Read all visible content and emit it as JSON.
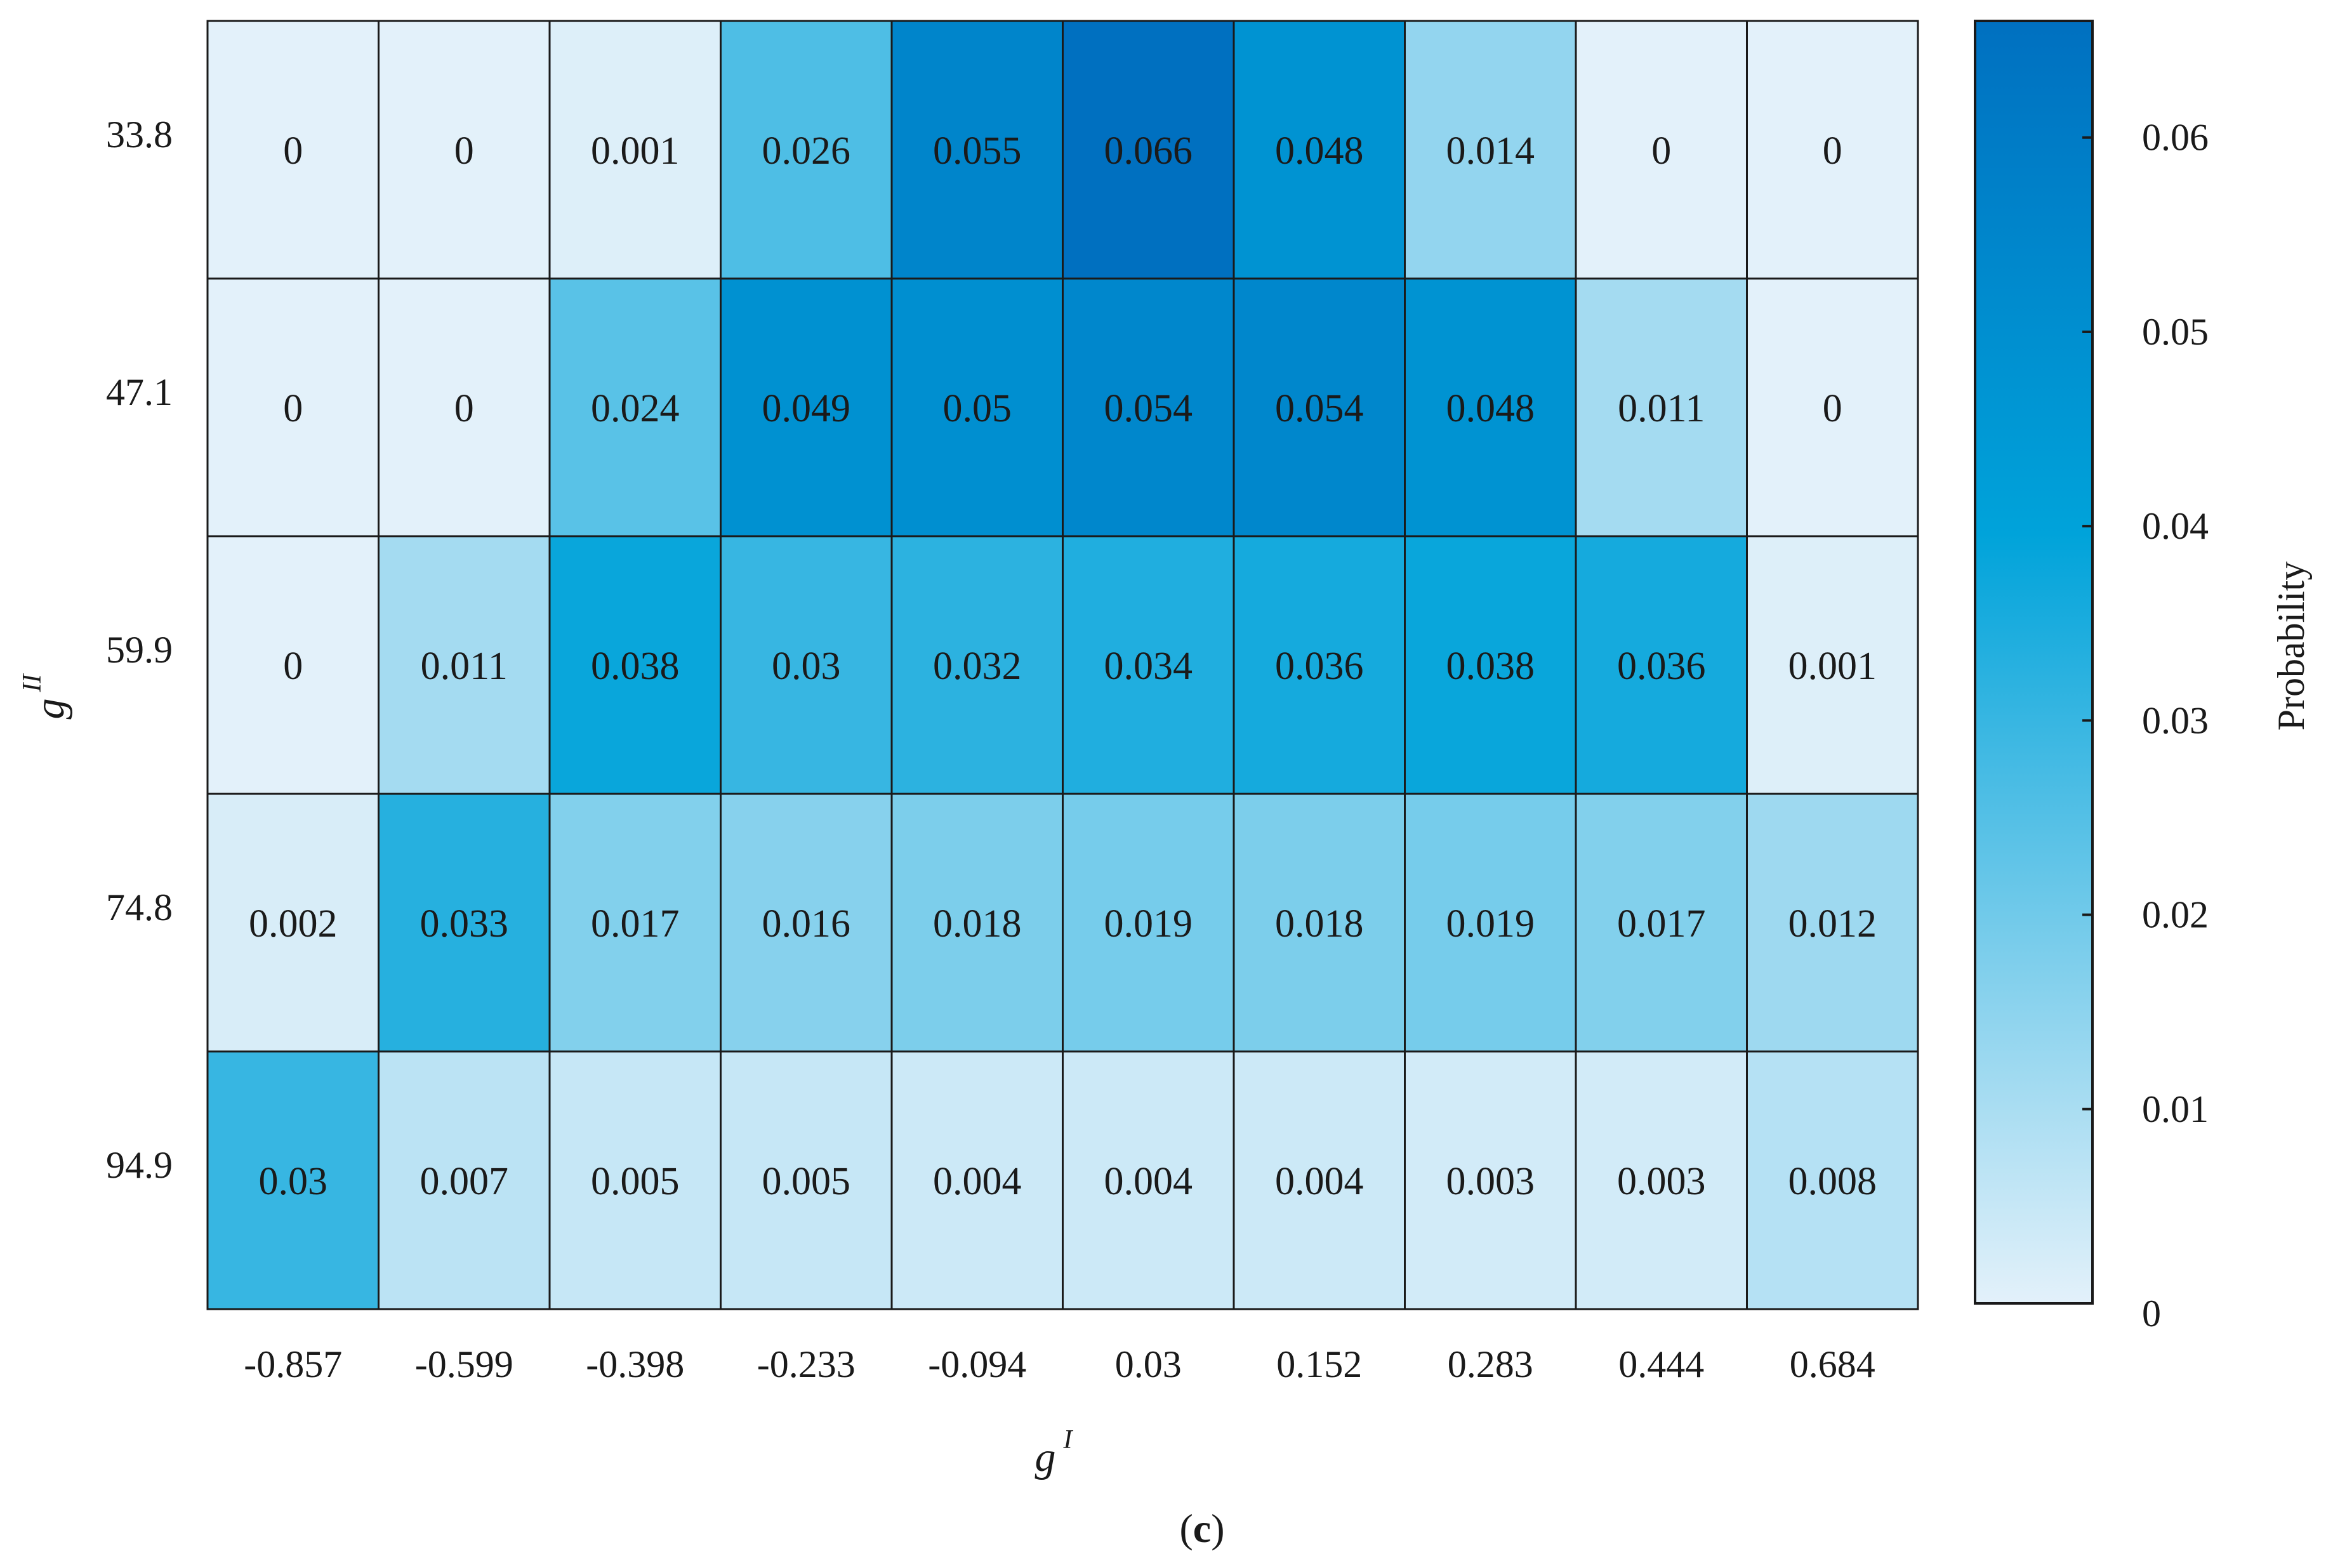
{
  "chart_data": {
    "type": "heatmap",
    "xlabel": "g",
    "xlabel_sup": "I",
    "ylabel": "g",
    "ylabel_sup": "II",
    "x_categories": [
      "-0.857",
      "-0.599",
      "-0.398",
      "-0.233",
      "-0.094",
      "0.03",
      "0.152",
      "0.283",
      "0.444",
      "0.684"
    ],
    "y_categories": [
      "33.8",
      "47.1",
      "59.9",
      "74.8",
      "94.9"
    ],
    "values": [
      [
        "0",
        "0",
        "0.001",
        "0.026",
        "0.055",
        "0.066",
        "0.048",
        "0.014",
        "0",
        "0"
      ],
      [
        "0",
        "0",
        "0.024",
        "0.049",
        "0.05",
        "0.054",
        "0.054",
        "0.048",
        "0.011",
        "0"
      ],
      [
        "0",
        "0.011",
        "0.038",
        "0.03",
        "0.032",
        "0.034",
        "0.036",
        "0.038",
        "0.036",
        "0.001"
      ],
      [
        "0.002",
        "0.033",
        "0.017",
        "0.016",
        "0.018",
        "0.019",
        "0.018",
        "0.019",
        "0.017",
        "0.012"
      ],
      [
        "0.03",
        "0.007",
        "0.005",
        "0.005",
        "0.004",
        "0.004",
        "0.004",
        "0.003",
        "0.003",
        "0.008"
      ]
    ],
    "colorbar": {
      "label": "Probability",
      "range": [
        0,
        0.066
      ],
      "ticks": [
        "0",
        "0.01",
        "0.02",
        "0.03",
        "0.04",
        "0.05",
        "0.06"
      ],
      "color_low": "#e3f1fa",
      "color_mid": "#00a3da",
      "color_high": "#0070c0"
    },
    "grid": true
  },
  "caption": {
    "open": "(",
    "letter": "c",
    "close": ")"
  }
}
